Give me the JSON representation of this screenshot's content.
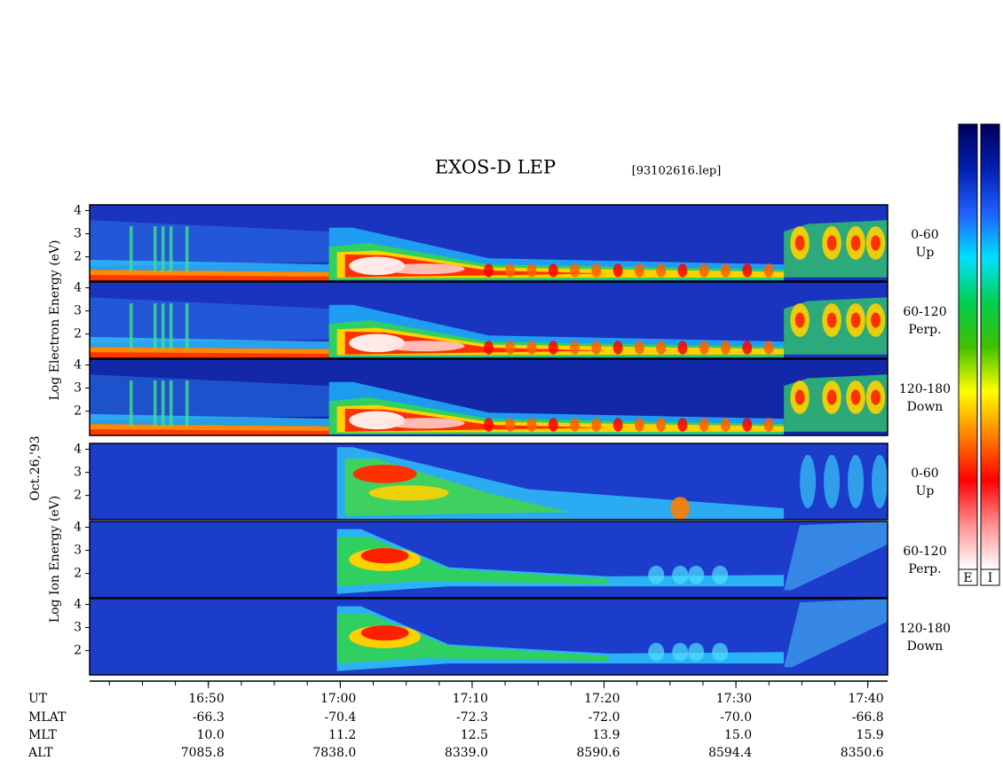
{
  "chart_data": {
    "type": "spectrogram",
    "title": "EXOS-D LEP",
    "file_label": "[93102616.lep]",
    "date_label": "Oct.26,'93",
    "groups": [
      {
        "name": "electron",
        "ylabel": "Log Electron Energy (eV)",
        "panels": [
          {
            "label": [
              "0-60",
              "Up"
            ]
          },
          {
            "label": [
              "60-120",
              "Perp."
            ]
          },
          {
            "label": [
              "120-180",
              "Down"
            ]
          }
        ]
      },
      {
        "name": "ion",
        "ylabel": "Log Ion Energy (eV)",
        "panels": [
          {
            "label": [
              "0-60",
              "Up"
            ]
          },
          {
            "label": [
              "60-120",
              "Perp."
            ]
          },
          {
            "label": [
              "120-180",
              "Down"
            ]
          }
        ]
      }
    ],
    "ylim": [
      0.95,
      4.25
    ],
    "yticks": [
      2,
      3,
      4
    ],
    "xlim": [
      1001,
      1061.5
    ],
    "xticks": [
      {
        "value": 1010,
        "label": "16:50"
      },
      {
        "value": 1020,
        "label": "17:00"
      },
      {
        "value": 1030,
        "label": "17:10"
      },
      {
        "value": 1040,
        "label": "17:20"
      },
      {
        "value": 1050,
        "label": "17:30"
      },
      {
        "value": 1060,
        "label": "17:40"
      }
    ],
    "xminor": 2.5,
    "orbit": [
      {
        "name": "UT",
        "values": []
      },
      {
        "name": "MLAT",
        "values": [
          "-66.3",
          "-70.4",
          "-72.3",
          "-72.0",
          "-70.0",
          "-66.8"
        ]
      },
      {
        "name": "MLT",
        "values": [
          "10.0",
          "11.2",
          "12.5",
          "13.9",
          "15.0",
          "15.9"
        ]
      },
      {
        "name": "ALT",
        "values": [
          "7085.8",
          "7838.0",
          "8339.0",
          "8590.6",
          "8594.4",
          "8350.6"
        ]
      }
    ],
    "colorbars": [
      {
        "label": "E"
      },
      {
        "label": "I"
      }
    ],
    "colormap": [
      "#00005a",
      "#0020b0",
      "#2060ff",
      "#00e0ff",
      "#00d050",
      "#40c000",
      "#ffff00",
      "#ff8000",
      "#ff0000",
      "#ff9090",
      "#ffffff"
    ]
  }
}
